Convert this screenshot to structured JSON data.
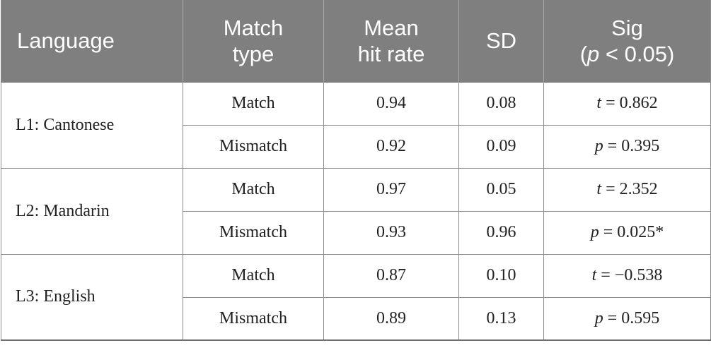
{
  "headers": {
    "language": "Language",
    "match_type_line1": "Match",
    "match_type_line2": "type",
    "mean_line1": "Mean",
    "mean_line2": "hit rate",
    "sd": "SD",
    "sig_line1": "Sig",
    "sig_line2_open": "(",
    "sig_line2_var": "p",
    "sig_line2_rest": " < 0.05)"
  },
  "groups": [
    {
      "language": "L1: Cantonese",
      "rows": [
        {
          "type": "Match",
          "mean": "0.94",
          "sd": "0.08",
          "stat_var": "t",
          "stat_rest": " = 0.862"
        },
        {
          "type": "Mismatch",
          "mean": "0.92",
          "sd": "0.09",
          "stat_var": "p",
          "stat_rest": " = 0.395"
        }
      ]
    },
    {
      "language": "L2: Mandarin",
      "rows": [
        {
          "type": "Match",
          "mean": "0.97",
          "sd": "0.05",
          "stat_var": "t",
          "stat_rest": " = 2.352"
        },
        {
          "type": "Mismatch",
          "mean": "0.93",
          "sd": "0.96",
          "stat_var": "p",
          "stat_rest": " = 0.025*"
        }
      ]
    },
    {
      "language": "L3: English",
      "rows": [
        {
          "type": "Match",
          "mean": "0.87",
          "sd": "0.10",
          "stat_var": "t",
          "stat_rest": " = −0.538"
        },
        {
          "type": "Mismatch",
          "mean": "0.89",
          "sd": "0.13",
          "stat_var": "p",
          "stat_rest": " = 0.595"
        }
      ]
    }
  ]
}
